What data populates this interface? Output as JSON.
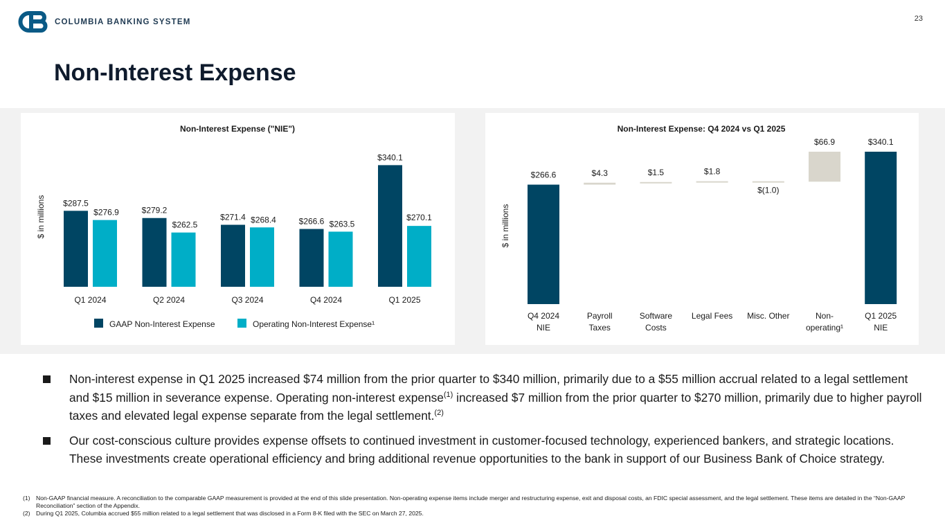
{
  "header": {
    "logo_text": "COLUMBIA BANKING SYSTEM",
    "page_number": "23",
    "title": "Non-Interest Expense"
  },
  "colors": {
    "navy": "#004563",
    "teal": "#00aec7",
    "beige": "#d9d6cc"
  },
  "chart_data": [
    {
      "type": "bar",
      "title": "Non-Interest Expense (\"NIE\")",
      "ylabel": "$ in millions",
      "xlabel": "",
      "categories": [
        "Q1 2024",
        "Q2 2024",
        "Q3 2024",
        "Q4 2024",
        "Q1 2025"
      ],
      "series": [
        {
          "name": "GAAP Non-Interest Expense",
          "color": "#004563",
          "values": [
            287.5,
            279.2,
            271.4,
            266.6,
            340.1
          ],
          "labels": [
            "$287.5",
            "$279.2",
            "$271.4",
            "$266.6",
            "$340.1"
          ]
        },
        {
          "name": "Operating Non-Interest Expense¹",
          "color": "#00aec7",
          "values": [
            276.9,
            262.5,
            268.4,
            263.5,
            270.1
          ],
          "labels": [
            "$276.9",
            "$262.5",
            "$268.4",
            "$263.5",
            "$270.1"
          ]
        }
      ],
      "ylim": [
        200,
        350
      ],
      "grid": false,
      "legend": "bottom"
    },
    {
      "type": "waterfall",
      "title": "Non-Interest Expense: Q4 2024 vs Q1 2025",
      "ylabel": "$ in millions",
      "xlabel": "",
      "categories": [
        [
          "Q4 2024",
          "NIE"
        ],
        [
          "Payroll",
          "Taxes"
        ],
        [
          "Software",
          "Costs"
        ],
        [
          "Legal Fees"
        ],
        [
          "Misc. Other"
        ],
        [
          "Non-",
          "operating¹"
        ],
        [
          "Q1 2025",
          "NIE"
        ]
      ],
      "values": [
        266.6,
        4.3,
        1.5,
        1.8,
        -1.0,
        66.9,
        340.1
      ],
      "kinds": [
        "total",
        "delta",
        "delta",
        "delta",
        "delta",
        "delta",
        "total"
      ],
      "labels": [
        "$266.6",
        "$4.3",
        "$1.5",
        "$1.8",
        "$(1.0)",
        "$66.9",
        "$340.1"
      ],
      "ylim": [
        0,
        350
      ],
      "grid": false
    }
  ],
  "bullets": [
    {
      "t1": "Non-interest expense in Q1 2025 increased $74 million from the prior quarter to $340 million, primarily due to a $55 million accrual related to a legal settlement and $15 million in severance expense. Operating non-interest expense",
      "s1": "(1)",
      "t2": " increased $7 million from the prior quarter to $270 million, primarily due to higher payroll taxes and elevated legal expense separate from the legal settlement.",
      "s2": "(2)"
    },
    {
      "t1": "Our cost-conscious culture provides expense offsets to continued investment in customer-focused technology, experienced bankers, and strategic locations. These investments create operational efficiency and bring additional revenue opportunities to the bank in support of our Business Bank of Choice strategy."
    }
  ],
  "footnotes": [
    {
      "num": "(1)",
      "text": "Non-GAAP financial measure. A reconciliation to the comparable GAAP measurement is provided at the end of this slide presentation. Non-operating expense items include merger and restructuring expense, exit and disposal costs, an FDIC special assessment, and the legal settlement. These items are detailed in the “Non-GAAP Reconciliation” section of the Appendix."
    },
    {
      "num": "(2)",
      "text": "During Q1 2025, Columbia accrued $55 million related to a legal settlement that was disclosed in a Form 8-K filed with the SEC on March 27, 2025."
    }
  ]
}
